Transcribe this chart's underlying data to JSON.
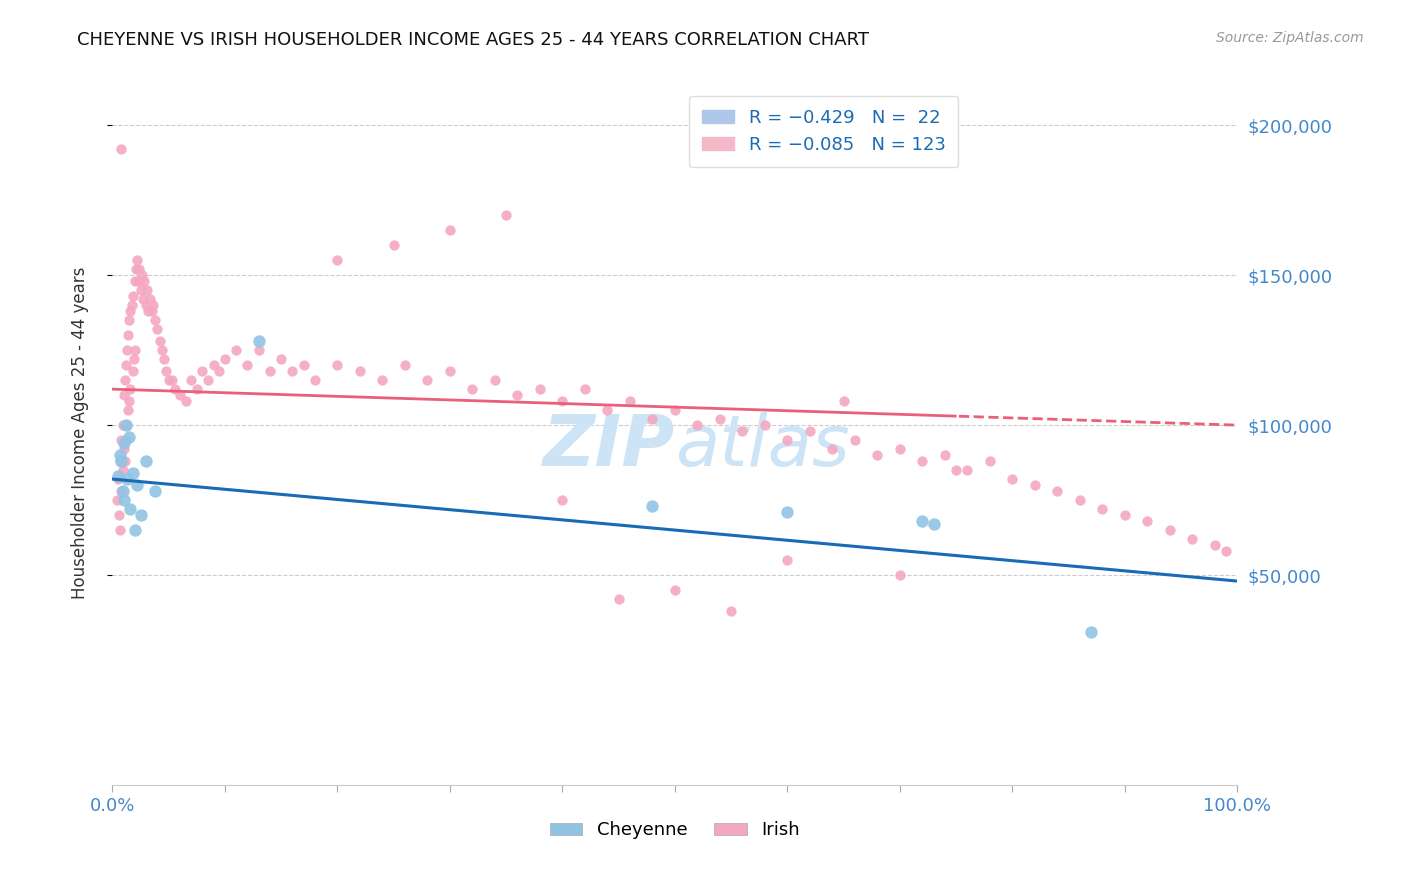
{
  "title": "CHEYENNE VS IRISH HOUSEHOLDER INCOME AGES 25 - 44 YEARS CORRELATION CHART",
  "source": "Source: ZipAtlas.com",
  "ylabel": "Householder Income Ages 25 - 44 years",
  "xlim": [
    0.0,
    1.0
  ],
  "ylim": [
    -20000,
    215000
  ],
  "yticks": [
    50000,
    100000,
    150000,
    200000
  ],
  "ytick_labels": [
    "$50,000",
    "$100,000",
    "$150,000",
    "$200,000"
  ],
  "xtick_positions": [
    0.0,
    0.1,
    0.2,
    0.3,
    0.4,
    0.5,
    0.6,
    0.7,
    0.8,
    0.9,
    1.0
  ],
  "xtick_labels_show": {
    "0.0": "0.0%",
    "1.0": "100.0%"
  },
  "cheyenne_color": "#90c4e4",
  "irish_color": "#f4a8c0",
  "trend_cheyenne_color": "#1a6bb5",
  "trend_irish_color": "#e8607a",
  "background_color": "#ffffff",
  "grid_color": "#cccccc",
  "axis_label_color": "#4488cc",
  "legend_text_color": "#1a6bb5",
  "watermark_color": "#cce4f5",
  "cheyenne_marker_size": 80,
  "irish_marker_size": 55,
  "cheyenne_x": [
    0.005,
    0.007,
    0.008,
    0.009,
    0.01,
    0.01,
    0.012,
    0.013,
    0.015,
    0.016,
    0.018,
    0.02,
    0.022,
    0.025,
    0.03,
    0.038,
    0.13,
    0.48,
    0.6,
    0.72,
    0.73,
    0.87
  ],
  "cheyenne_y": [
    83000,
    90000,
    88000,
    78000,
    94000,
    75000,
    100000,
    82000,
    96000,
    72000,
    84000,
    65000,
    80000,
    70000,
    88000,
    78000,
    128000,
    73000,
    71000,
    68000,
    67000,
    31000
  ],
  "irish_x": [
    0.004,
    0.005,
    0.006,
    0.007,
    0.007,
    0.008,
    0.008,
    0.009,
    0.009,
    0.01,
    0.01,
    0.011,
    0.011,
    0.012,
    0.012,
    0.013,
    0.013,
    0.014,
    0.014,
    0.015,
    0.015,
    0.016,
    0.016,
    0.017,
    0.018,
    0.018,
    0.019,
    0.02,
    0.02,
    0.021,
    0.022,
    0.023,
    0.024,
    0.025,
    0.026,
    0.027,
    0.028,
    0.03,
    0.031,
    0.032,
    0.033,
    0.035,
    0.036,
    0.038,
    0.04,
    0.042,
    0.044,
    0.046,
    0.048,
    0.05,
    0.053,
    0.056,
    0.06,
    0.065,
    0.07,
    0.075,
    0.08,
    0.085,
    0.09,
    0.095,
    0.1,
    0.11,
    0.12,
    0.13,
    0.14,
    0.15,
    0.16,
    0.17,
    0.18,
    0.2,
    0.22,
    0.24,
    0.26,
    0.28,
    0.3,
    0.32,
    0.34,
    0.36,
    0.38,
    0.4,
    0.42,
    0.44,
    0.46,
    0.48,
    0.5,
    0.52,
    0.54,
    0.56,
    0.58,
    0.6,
    0.62,
    0.64,
    0.66,
    0.68,
    0.7,
    0.72,
    0.74,
    0.76,
    0.78,
    0.8,
    0.82,
    0.84,
    0.86,
    0.88,
    0.9,
    0.92,
    0.94,
    0.96,
    0.98,
    0.99,
    0.008,
    0.35,
    0.45,
    0.55,
    0.65,
    0.75,
    0.5,
    0.6,
    0.4,
    0.7,
    0.3,
    0.25,
    0.2
  ],
  "irish_y": [
    75000,
    82000,
    70000,
    88000,
    65000,
    95000,
    78000,
    100000,
    85000,
    110000,
    92000,
    115000,
    88000,
    120000,
    95000,
    125000,
    100000,
    130000,
    105000,
    135000,
    108000,
    138000,
    112000,
    140000,
    118000,
    143000,
    122000,
    148000,
    125000,
    152000,
    155000,
    148000,
    152000,
    145000,
    150000,
    142000,
    148000,
    140000,
    145000,
    138000,
    142000,
    138000,
    140000,
    135000,
    132000,
    128000,
    125000,
    122000,
    118000,
    115000,
    115000,
    112000,
    110000,
    108000,
    115000,
    112000,
    118000,
    115000,
    120000,
    118000,
    122000,
    125000,
    120000,
    125000,
    118000,
    122000,
    118000,
    120000,
    115000,
    120000,
    118000,
    115000,
    120000,
    115000,
    118000,
    112000,
    115000,
    110000,
    112000,
    108000,
    112000,
    105000,
    108000,
    102000,
    105000,
    100000,
    102000,
    98000,
    100000,
    95000,
    98000,
    92000,
    95000,
    90000,
    92000,
    88000,
    90000,
    85000,
    88000,
    82000,
    80000,
    78000,
    75000,
    72000,
    70000,
    68000,
    65000,
    62000,
    60000,
    58000,
    192000,
    170000,
    42000,
    38000,
    108000,
    85000,
    45000,
    55000,
    75000,
    50000,
    165000,
    160000,
    155000
  ],
  "trend_irish_solid_end": 0.75,
  "trend_cheyenne_x0": 0.0,
  "trend_cheyenne_y0": 82000,
  "trend_cheyenne_x1": 1.0,
  "trend_cheyenne_y1": 48000,
  "trend_irish_x0": 0.0,
  "trend_irish_y0": 112000,
  "trend_irish_x1": 1.0,
  "trend_irish_y1": 100000
}
